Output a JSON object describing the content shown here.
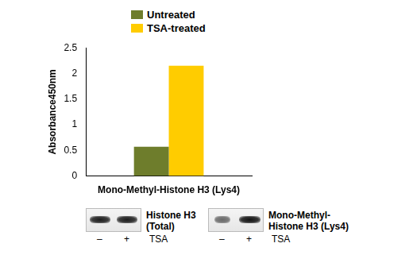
{
  "chart_data": {
    "type": "bar",
    "y_label": "Absorbance450nm",
    "categories": [
      "Mono-Methyl-Histone H3 (Lys4)"
    ],
    "series": [
      {
        "name": "Untreated",
        "color": "#6e7d2c",
        "values": [
          0.57
        ]
      },
      {
        "name": "TSA-treated",
        "color": "#ffcc00",
        "values": [
          2.15
        ]
      }
    ],
    "ylim": [
      0,
      2.5
    ],
    "yticks": [
      0,
      0.5,
      1,
      1.5,
      2,
      2.5
    ],
    "grid": false,
    "legend": "top"
  },
  "blots": [
    {
      "label": "Histone H3 (Total)",
      "lanes": [
        "–",
        "+"
      ],
      "treatment": "TSA"
    },
    {
      "label": "Mono-Methyl-Histone H3 (Lys4)",
      "lanes": [
        "–",
        "+"
      ],
      "treatment": "TSA"
    }
  ]
}
